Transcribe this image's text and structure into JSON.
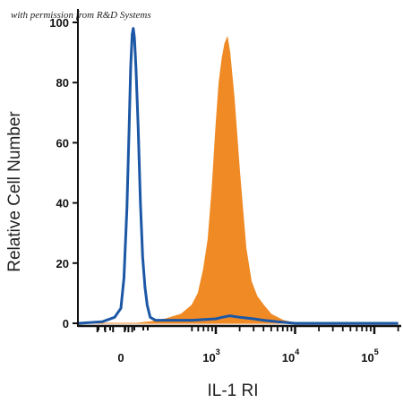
{
  "watermark": "with permission from R&D Systems",
  "chart_data": {
    "type": "area",
    "xlabel": "IL-1 RI",
    "ylabel": "Relative Cell Number",
    "x_scale": "biexponential (log above 10^2)",
    "x_ticks": [
      {
        "value": "0",
        "base": "0",
        "exp": ""
      },
      {
        "value": "1000",
        "base": "10",
        "exp": "3"
      },
      {
        "value": "10000",
        "base": "10",
        "exp": "4"
      },
      {
        "value": "100000",
        "base": "10",
        "exp": "5"
      }
    ],
    "y_ticks": [
      "0",
      "20",
      "40",
      "60",
      "80",
      "100"
    ],
    "ylim": [
      0,
      100
    ],
    "grid": false,
    "colors": {
      "isotype": "#1c57a5",
      "stained": "#f08a24"
    },
    "series": [
      {
        "style": "outline",
        "color": "#1c57a5",
        "points": [
          [
            -200,
            0
          ],
          [
            -60,
            0.5
          ],
          [
            -20,
            2
          ],
          [
            0,
            5
          ],
          [
            20,
            15
          ],
          [
            40,
            38
          ],
          [
            55,
            65
          ],
          [
            65,
            85
          ],
          [
            75,
            96
          ],
          [
            82,
            98
          ],
          [
            90,
            95
          ],
          [
            100,
            85
          ],
          [
            115,
            65
          ],
          [
            130,
            40
          ],
          [
            145,
            22
          ],
          [
            160,
            12
          ],
          [
            175,
            6
          ],
          [
            195,
            2
          ],
          [
            230,
            1
          ],
          [
            500,
            1
          ],
          [
            1000,
            1.5
          ],
          [
            1200,
            2
          ],
          [
            1500,
            2.5
          ],
          [
            2000,
            2
          ],
          [
            3000,
            1.5
          ],
          [
            4000,
            1
          ],
          [
            6000,
            0.5
          ],
          [
            10000,
            0
          ],
          [
            200000,
            0
          ]
        ]
      },
      {
        "style": "filled",
        "color": "#f08a24",
        "points": [
          [
            -200,
            0
          ],
          [
            100,
            0
          ],
          [
            200,
            0.5
          ],
          [
            300,
            1.5
          ],
          [
            400,
            3
          ],
          [
            500,
            6
          ],
          [
            600,
            10
          ],
          [
            700,
            18
          ],
          [
            800,
            28
          ],
          [
            900,
            45
          ],
          [
            1000,
            65
          ],
          [
            1100,
            80
          ],
          [
            1200,
            88
          ],
          [
            1300,
            93
          ],
          [
            1400,
            95
          ],
          [
            1500,
            90
          ],
          [
            1700,
            75
          ],
          [
            2000,
            50
          ],
          [
            2400,
            25
          ],
          [
            2800,
            14
          ],
          [
            3300,
            9
          ],
          [
            4000,
            6
          ],
          [
            5000,
            3
          ],
          [
            7000,
            1
          ],
          [
            10000,
            0
          ],
          [
            200000,
            0
          ]
        ]
      }
    ]
  }
}
